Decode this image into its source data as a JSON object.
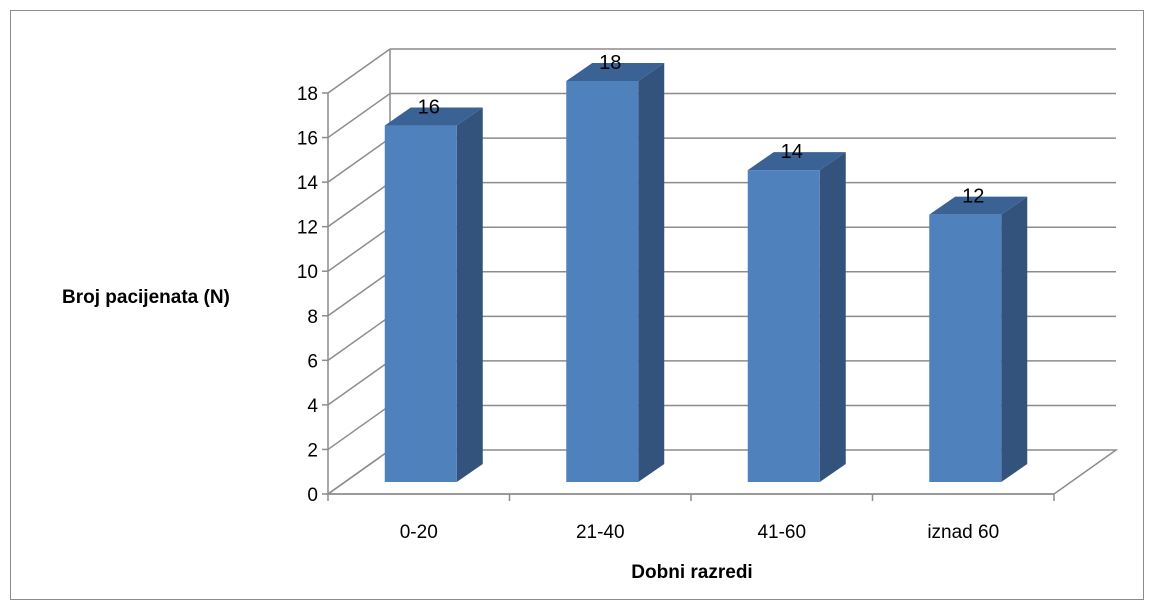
{
  "chart_data": {
    "type": "bar",
    "title": "",
    "xlabel": "Dobni razredi",
    "ylabel": "Broj pacijenata (N)",
    "categories": [
      "0-20",
      "21-40",
      "41-60",
      "iznad 60"
    ],
    "values": [
      16,
      18,
      14,
      12
    ],
    "data_labels": [
      "16",
      "18",
      "14",
      "12"
    ],
    "ylim": [
      0,
      18
    ],
    "yticks": [
      "0",
      "2",
      "4",
      "6",
      "8",
      "10",
      "12",
      "14",
      "16",
      "18"
    ],
    "grid": true,
    "style": "3d-column",
    "colors": {
      "bar_front": "#4f81bd",
      "bar_side": "#33537c",
      "bar_top": "#3a6294",
      "grid": "#8c8c8c"
    }
  }
}
